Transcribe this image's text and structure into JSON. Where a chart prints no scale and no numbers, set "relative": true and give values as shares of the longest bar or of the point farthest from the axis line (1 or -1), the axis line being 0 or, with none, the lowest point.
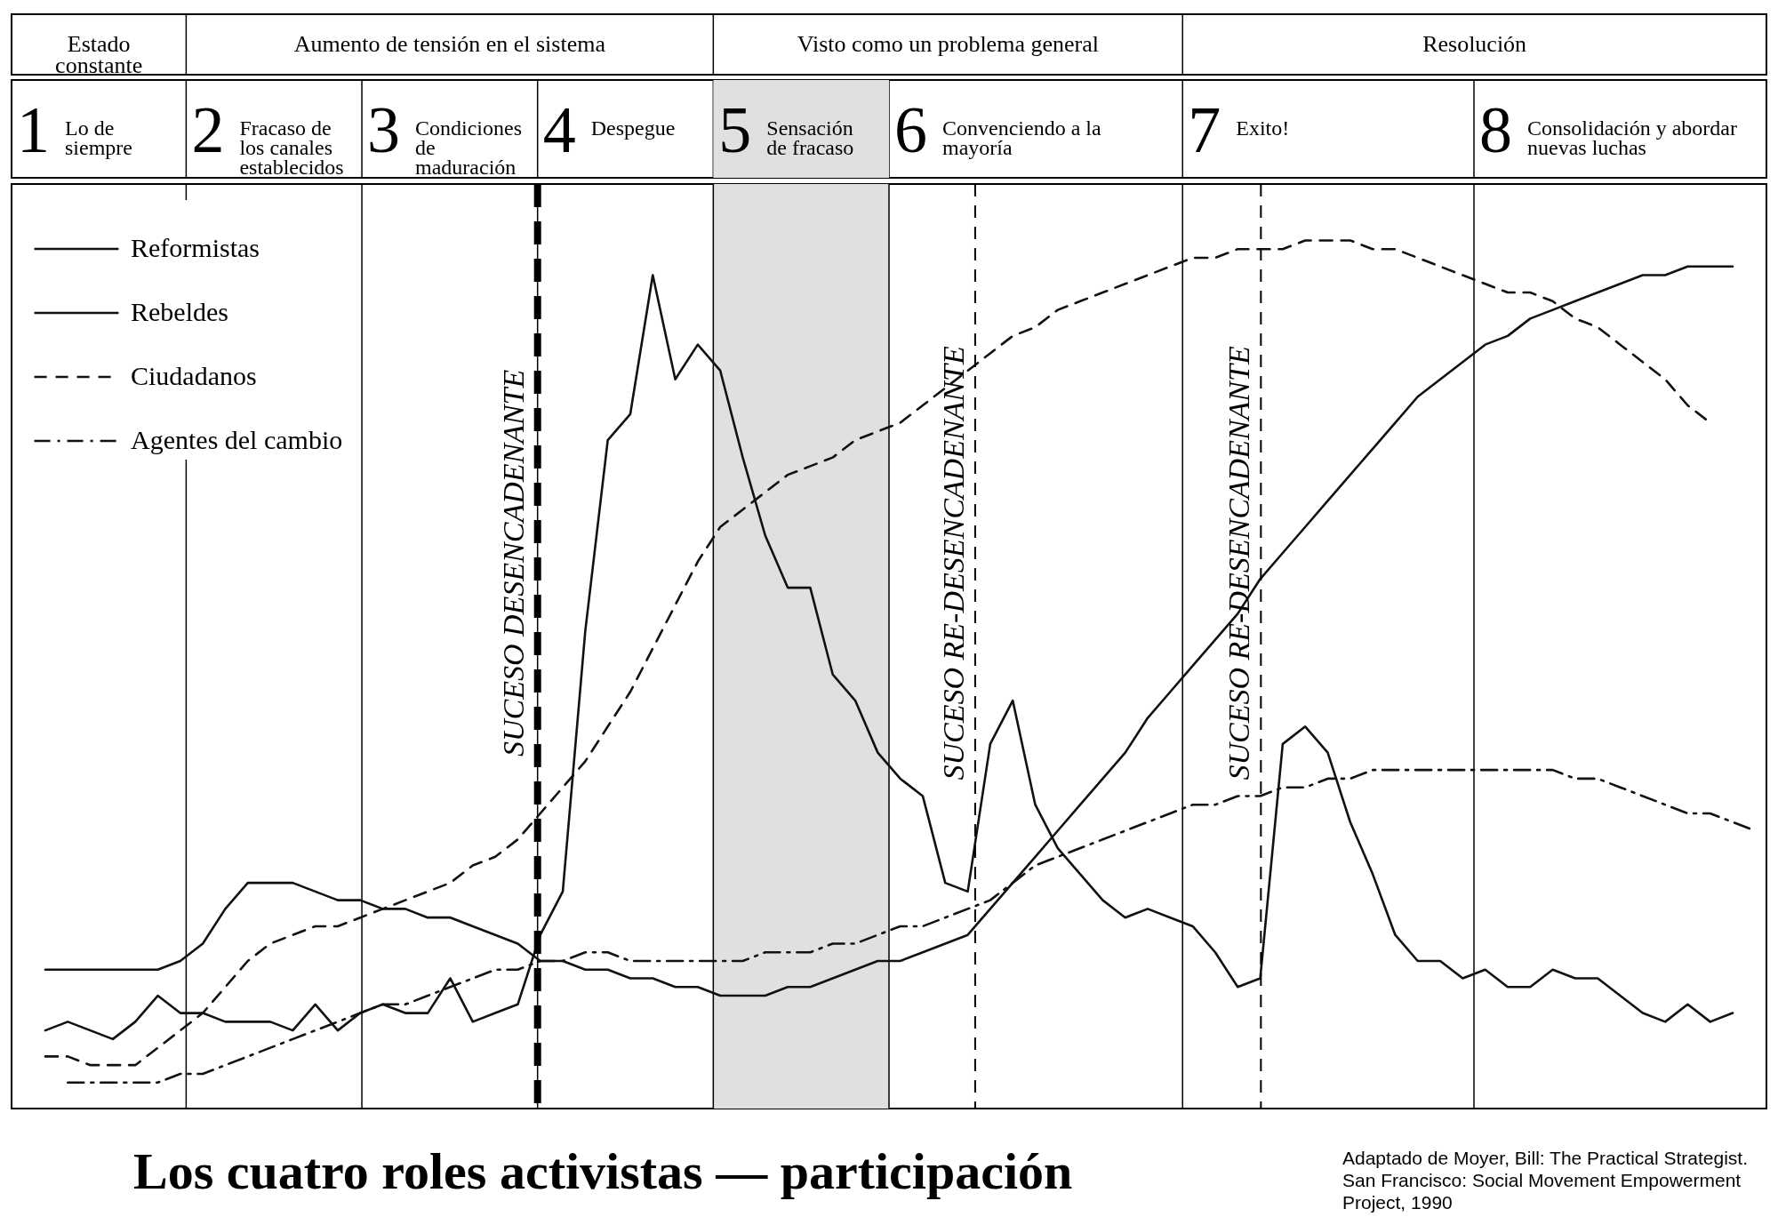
{
  "chart_data": {
    "type": "line",
    "relative": true,
    "title": "Los cuatro roles activistas — participación",
    "annotations": [
      "Estado constante",
      "Aumento de tensión en el sistema",
      "Visto como un problema general",
      "Resolución",
      "1 Lo de siempre",
      "2 Fracaso de los canales establecidos",
      "3 Condiciones de maduración",
      "4 Despegue",
      "5 Sensación de fracaso",
      "6 Convenciendo a la mayoría",
      "7 Exito!",
      "8 Consolidación y abordar nuevas luchas",
      "SUCESO DESENCADENANTE",
      "SUCESO RE-DESENCADENANTE",
      "SUCESO RE-DESENCADENANTE",
      "Adaptado de Moyer, Bill: The Practical Strategist. San Francisco: Social Movement Empowerment Project, 1990"
    ],
    "categories": [
      null,
      null,
      null,
      null,
      null,
      null,
      null,
      null,
      null,
      null,
      null,
      null,
      null,
      null,
      null,
      null,
      null,
      null,
      null,
      null,
      null,
      null,
      null,
      null,
      null,
      null,
      null,
      null,
      null,
      null,
      null,
      null,
      null,
      null,
      null,
      null,
      null,
      null,
      null,
      null,
      null,
      null,
      null,
      null,
      null,
      null,
      null,
      null,
      null,
      null,
      null,
      null,
      null,
      null,
      null,
      null,
      null,
      null,
      null,
      null,
      null,
      null,
      null,
      null,
      null,
      null,
      null,
      null,
      null,
      null,
      null,
      null,
      null,
      null,
      null,
      null,
      null,
      null
    ],
    "legend": "top left",
    "grid": "x",
    "series": [
      {
        "name": "Reformistas",
        "color": "#111111",
        "line_style": "solid",
        "values": [
          null,
          0.16,
          0.16,
          0.16,
          0.16,
          0.16,
          0.16,
          0.17,
          0.19,
          0.23,
          0.26,
          0.26,
          0.26,
          0.25,
          0.24,
          0.24,
          0.23,
          0.23,
          0.22,
          0.22,
          0.21,
          0.2,
          0.19,
          0.17,
          0.17,
          0.16,
          0.16,
          0.15,
          0.15,
          0.14,
          0.14,
          0.13,
          0.13,
          0.13,
          0.14,
          0.14,
          0.15,
          0.16,
          0.17,
          0.17,
          0.18,
          0.19,
          0.2,
          0.23,
          0.26,
          0.29,
          0.32,
          0.35,
          0.38,
          0.41,
          0.45,
          0.48,
          0.51,
          0.54,
          0.57,
          0.61,
          0.64,
          0.67,
          0.7,
          0.73,
          0.76,
          0.79,
          0.82,
          0.84,
          0.86,
          0.88,
          0.89,
          0.91,
          0.92,
          0.93,
          0.94,
          0.95,
          0.96,
          0.96,
          0.97,
          0.97,
          0.97,
          null
        ]
      },
      {
        "name": "Rebeldes",
        "color": "#111111",
        "line_style": "solid",
        "values": [
          null,
          0.09,
          0.1,
          0.09,
          0.08,
          0.1,
          0.13,
          0.11,
          0.11,
          0.1,
          0.1,
          0.1,
          0.09,
          0.12,
          0.09,
          0.11,
          0.12,
          0.11,
          0.11,
          0.15,
          0.1,
          0.11,
          0.12,
          0.2,
          0.25,
          0.55,
          0.77,
          0.8,
          0.96,
          0.84,
          0.88,
          0.85,
          0.75,
          0.66,
          0.6,
          0.6,
          0.5,
          0.47,
          0.41,
          0.38,
          0.36,
          0.26,
          0.25,
          0.42,
          0.47,
          0.35,
          0.3,
          0.27,
          0.24,
          0.22,
          0.23,
          0.22,
          0.21,
          0.18,
          0.14,
          0.15,
          0.42,
          0.44,
          0.41,
          0.33,
          0.27,
          0.2,
          0.17,
          0.17,
          0.15,
          0.16,
          0.14,
          0.14,
          0.16,
          0.15,
          0.15,
          0.13,
          0.11,
          0.1,
          0.12,
          0.1,
          0.11,
          null
        ]
      },
      {
        "name": "Ciudadanos",
        "color": "#111111",
        "line_style": "dashed",
        "values": [
          null,
          0.06,
          0.06,
          0.05,
          0.05,
          0.05,
          0.07,
          0.09,
          0.11,
          0.14,
          0.17,
          0.19,
          0.2,
          0.21,
          0.21,
          0.22,
          0.23,
          0.24,
          0.25,
          0.26,
          0.28,
          0.29,
          0.31,
          0.34,
          0.37,
          0.4,
          0.44,
          0.48,
          0.53,
          0.58,
          0.63,
          0.67,
          0.69,
          0.71,
          0.73,
          0.74,
          0.75,
          0.77,
          0.78,
          0.79,
          0.81,
          0.83,
          0.85,
          0.87,
          0.89,
          0.9,
          0.92,
          0.93,
          0.94,
          0.95,
          0.96,
          0.97,
          0.98,
          0.98,
          0.99,
          0.99,
          0.99,
          1.0,
          1.0,
          1.0,
          0.99,
          0.99,
          0.98,
          0.97,
          0.96,
          0.95,
          0.94,
          0.94,
          0.93,
          0.91,
          0.9,
          0.88,
          0.86,
          0.84,
          0.81,
          0.79,
          null,
          null
        ]
      },
      {
        "name": "Agentes del cambio",
        "color": "#111111",
        "line_style": "dashdot",
        "values": [
          null,
          null,
          0.03,
          0.03,
          0.03,
          0.03,
          0.03,
          0.04,
          0.04,
          0.05,
          0.06,
          0.07,
          0.08,
          0.09,
          0.1,
          0.11,
          0.12,
          0.12,
          0.13,
          0.14,
          0.15,
          0.16,
          0.16,
          0.17,
          0.17,
          0.18,
          0.18,
          0.17,
          0.17,
          0.17,
          0.17,
          0.17,
          0.17,
          0.18,
          0.18,
          0.18,
          0.19,
          0.19,
          0.2,
          0.21,
          0.21,
          0.22,
          0.23,
          0.24,
          0.26,
          0.28,
          0.29,
          0.3,
          0.31,
          0.32,
          0.33,
          0.34,
          0.35,
          0.35,
          0.36,
          0.36,
          0.37,
          0.37,
          0.38,
          0.38,
          0.39,
          0.39,
          0.39,
          0.39,
          0.39,
          0.39,
          0.39,
          0.39,
          0.39,
          0.38,
          0.38,
          0.37,
          0.36,
          0.35,
          0.34,
          0.34,
          0.33,
          0.32
        ]
      }
    ]
  }
}
